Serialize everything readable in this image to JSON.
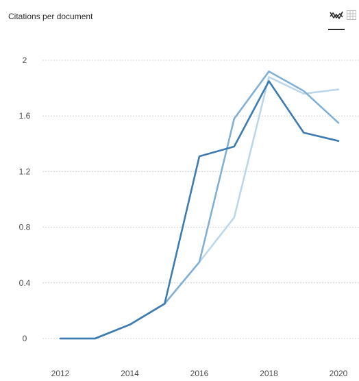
{
  "header": {
    "title": "Citations per document",
    "line_view_icon": "line-chart-icon",
    "table_view_icon": "table-grid-icon"
  },
  "colors": {
    "series_dark": "#3d7bb0",
    "series_medium": "#82b0d4",
    "series_light": "#bcd7ea",
    "grid": "#d4d4d4",
    "text": "#4a4a4a"
  },
  "chart_data": {
    "type": "line",
    "title": "Citations per document",
    "xlabel": "",
    "ylabel": "",
    "x": [
      2012,
      2013,
      2014,
      2015,
      2016,
      2017,
      2018,
      2019,
      2020
    ],
    "x_ticks": [
      "2012",
      "2014",
      "2016",
      "2018",
      "2020"
    ],
    "y_ticks": [
      "0",
      "0.4",
      "0.8",
      "1.2",
      "1.6",
      "2"
    ],
    "ylim": [
      0,
      2
    ],
    "xlim": [
      2012,
      2020
    ],
    "grid": true,
    "series": [
      {
        "values": [
          0,
          0,
          0.1,
          0.25,
          0.55,
          0.87,
          1.88,
          1.76,
          1.79
        ]
      },
      {
        "values": [
          0,
          0,
          0.1,
          0.25,
          0.55,
          1.58,
          1.92,
          1.78,
          1.55
        ]
      },
      {
        "values": [
          0,
          0,
          0.1,
          0.25,
          1.31,
          1.38,
          1.85,
          1.48,
          1.42
        ]
      }
    ]
  }
}
